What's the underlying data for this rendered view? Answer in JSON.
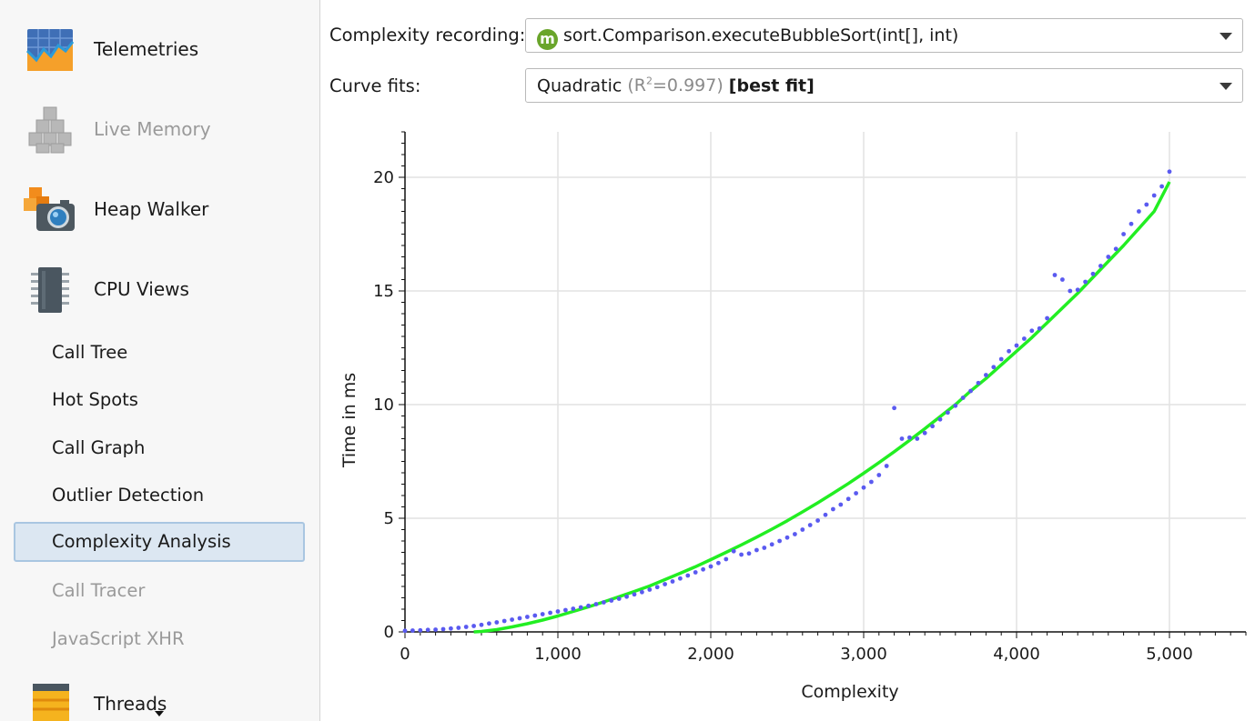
{
  "sidebar": {
    "sections": [
      {
        "label": "Telemetries",
        "icon": "telemetries-icon",
        "enabled": true
      },
      {
        "label": "Live Memory",
        "icon": "live-memory-icon",
        "enabled": false
      },
      {
        "label": "Heap Walker",
        "icon": "heap-walker-icon",
        "enabled": true
      },
      {
        "label": "CPU Views",
        "icon": "cpu-views-icon",
        "enabled": true
      }
    ],
    "cpu_items": [
      {
        "label": "Call Tree",
        "enabled": true,
        "selected": false
      },
      {
        "label": "Hot Spots",
        "enabled": true,
        "selected": false
      },
      {
        "label": "Call Graph",
        "enabled": true,
        "selected": false
      },
      {
        "label": "Outlier Detection",
        "enabled": true,
        "selected": false
      },
      {
        "label": "Complexity Analysis",
        "enabled": true,
        "selected": true
      },
      {
        "label": "Call Tracer",
        "enabled": false,
        "selected": false
      },
      {
        "label": "JavaScript XHR",
        "enabled": false,
        "selected": false
      }
    ],
    "threads": {
      "label": "Threads",
      "icon": "threads-icon"
    }
  },
  "controls": {
    "recording_label": "Complexity recording:",
    "recording_badge": "m",
    "recording_value": "sort.Comparison.executeBubbleSort(int[], int)",
    "fits_label": "Curve fits:",
    "fit_name": "Quadratic",
    "fit_r_open": "(R",
    "fit_r_sup": "2",
    "fit_r_value": "=0.997)",
    "fit_best": "[best fit]"
  },
  "colors": {
    "points": "#5a5af0",
    "fit": "#22ee22",
    "grid": "#e2e2e2",
    "accent_selected": "#dce7f2"
  },
  "chart_data": {
    "type": "scatter",
    "xlabel": "Complexity",
    "ylabel": "Time in ms",
    "xlim": [
      0,
      5500
    ],
    "ylim": [
      0,
      22
    ],
    "x_ticks": [
      0,
      1000,
      2000,
      3000,
      4000,
      5000
    ],
    "x_tick_labels": [
      "0",
      "1,000",
      "2,000",
      "3,000",
      "4,000",
      "5,000"
    ],
    "y_ticks": [
      0,
      5,
      10,
      15,
      20
    ],
    "y_tick_labels": [
      "0",
      "5",
      "10",
      "15",
      "20"
    ],
    "grid": true,
    "series": [
      {
        "kind": "points",
        "x": [
          0,
          50,
          100,
          150,
          200,
          250,
          300,
          350,
          400,
          450,
          500,
          550,
          600,
          650,
          700,
          750,
          800,
          850,
          900,
          950,
          1000,
          1050,
          1100,
          1150,
          1200,
          1250,
          1300,
          1350,
          1400,
          1450,
          1500,
          1550,
          1600,
          1650,
          1700,
          1750,
          1800,
          1850,
          1900,
          1950,
          2000,
          2050,
          2100,
          2150,
          2200,
          2250,
          2300,
          2350,
          2400,
          2450,
          2500,
          2550,
          2600,
          2650,
          2700,
          2750,
          2800,
          2850,
          2900,
          2950,
          3000,
          3050,
          3100,
          3150,
          3200,
          3250,
          3300,
          3350,
          3400,
          3450,
          3500,
          3550,
          3600,
          3650,
          3700,
          3750,
          3800,
          3850,
          3900,
          3950,
          4000,
          4050,
          4100,
          4150,
          4200,
          4250,
          4300,
          4350,
          4400,
          4450,
          4500,
          4550,
          4600,
          4650,
          4700,
          4750,
          4800,
          4850,
          4900,
          4950,
          5000
        ],
        "y": [
          0.05,
          0.06,
          0.07,
          0.09,
          0.1,
          0.12,
          0.15,
          0.18,
          0.22,
          0.26,
          0.31,
          0.37,
          0.42,
          0.48,
          0.54,
          0.6,
          0.66,
          0.72,
          0.78,
          0.84,
          0.9,
          0.96,
          1.02,
          1.08,
          1.15,
          1.22,
          1.3,
          1.38,
          1.46,
          1.55,
          1.65,
          1.75,
          1.86,
          1.97,
          2.1,
          2.22,
          2.35,
          2.48,
          2.62,
          2.75,
          2.88,
          3.03,
          3.2,
          3.55,
          3.4,
          3.45,
          3.6,
          3.7,
          3.85,
          4.0,
          4.15,
          4.3,
          4.5,
          4.7,
          4.9,
          5.15,
          5.4,
          5.6,
          5.85,
          6.1,
          6.35,
          6.6,
          6.9,
          7.3,
          9.85,
          8.5,
          8.55,
          8.5,
          8.75,
          9.05,
          9.35,
          9.65,
          9.95,
          10.3,
          10.6,
          10.95,
          11.3,
          11.65,
          12.0,
          12.35,
          12.6,
          12.9,
          13.25,
          13.35,
          13.8,
          15.7,
          15.5,
          15.0,
          15.05,
          15.4,
          15.75,
          16.1,
          16.5,
          16.85,
          17.5,
          17.95,
          18.5,
          18.8,
          19.2,
          19.6,
          20.25
        ]
      },
      {
        "kind": "fit-line",
        "name": "Quadratic",
        "x": [
          450,
          500,
          600,
          700,
          800,
          900,
          1000,
          1100,
          1200,
          1300,
          1400,
          1500,
          1600,
          1700,
          1800,
          1900,
          2000,
          2100,
          2200,
          2300,
          2400,
          2500,
          2600,
          2700,
          2800,
          2900,
          3000,
          3100,
          3200,
          3300,
          3400,
          3500,
          3600,
          3700,
          3800,
          3900,
          4000,
          4100,
          4200,
          4300,
          4400,
          4500,
          4600,
          4700,
          4800,
          4900,
          5000
        ],
        "y": [
          0.0,
          0.02,
          0.1,
          0.22,
          0.36,
          0.52,
          0.7,
          0.9,
          1.1,
          1.32,
          1.55,
          1.78,
          2.02,
          2.3,
          2.58,
          2.87,
          3.18,
          3.5,
          3.83,
          4.17,
          4.52,
          4.89,
          5.28,
          5.68,
          6.1,
          6.53,
          6.98,
          7.45,
          7.93,
          8.43,
          8.94,
          9.47,
          10.0,
          10.6,
          11.15,
          11.75,
          12.35,
          12.95,
          13.6,
          14.25,
          14.9,
          15.6,
          16.3,
          17.0,
          17.75,
          18.5,
          19.8
        ]
      }
    ]
  }
}
